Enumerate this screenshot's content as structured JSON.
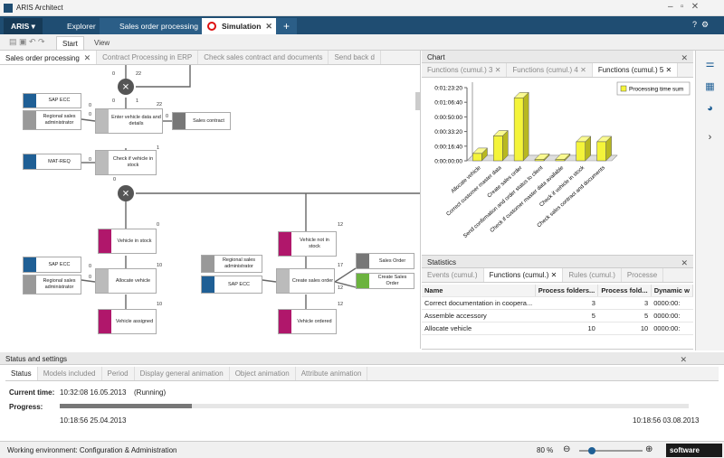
{
  "window": {
    "title": "ARIS Architect"
  },
  "tabs": {
    "menu": "ARIS",
    "items": [
      "Explorer",
      "Sales order processing",
      "Simulation"
    ]
  },
  "ribbon": {
    "tabs": [
      "Start",
      "View"
    ]
  },
  "model_tabs": [
    "Sales order processing",
    "Contract Processing in ERP",
    "Check sales contract and documents",
    "Send back d"
  ],
  "diagram": {
    "nodes": [
      "SAP ECC",
      "Regional sales administrator",
      "Enter vehicle data and details",
      "Sales contract",
      "MAT-REQ",
      "Check if vehicle in stock",
      "Vehicle in stock",
      "Vehicle not in stock",
      "SAP ECC",
      "Regional sales administrator",
      "Allocate vehicle",
      "Regional sales administrator",
      "SAP ECC",
      "Create sales order",
      "Sales Order",
      "Create Sales Order",
      "Vehicle assigned",
      "Vehicle ordered"
    ],
    "counters": [
      0,
      22,
      0,
      1,
      0,
      0,
      22,
      0,
      0,
      1,
      0,
      0,
      0,
      12,
      0,
      10,
      17,
      12,
      10,
      12
    ]
  },
  "chart_panel": {
    "title": "Chart",
    "tabs": [
      "Functions (cumul.) 3",
      "Functions (cumul.) 4",
      "Functions (cumul.) 5"
    ],
    "chart": {
      "type": "bar",
      "categories": [
        "Allocate vehicle",
        "Correct customer master data",
        "Create sales order",
        "Send confirmation and order status to client",
        "Check if customer master data available",
        "Check if vehicle in stock",
        "Check sales contract and documents"
      ],
      "series": [
        {
          "name": "Processing time sum",
          "color": "#f4f43a",
          "values": [
            500,
            1700,
            4300,
            100,
            100,
            1300,
            1300
          ]
        }
      ],
      "ylim": [
        0,
        5000
      ],
      "yticks": [
        {
          "value": 0,
          "label": "0:00:00:00"
        },
        {
          "value": 1000,
          "label": "0:00:16:40"
        },
        {
          "value": 2000,
          "label": "0:00:33:20"
        },
        {
          "value": 3000,
          "label": "0:00:50:00"
        },
        {
          "value": 4000,
          "label": "0:01:06:40"
        },
        {
          "value": 5000,
          "label": "0:01:23:20"
        }
      ]
    }
  },
  "statistics": {
    "title": "Statistics",
    "tabs": [
      "Events (cumul.)",
      "Functions (cumul.)",
      "Rules (cumul.)",
      "Processe"
    ],
    "table": {
      "header": [
        "Name",
        "Process folders...",
        "Process fold...",
        "Dynamic w"
      ],
      "rows": [
        [
          "Correct documentation in coopera...",
          3,
          3,
          "0000:00:"
        ],
        [
          "Assemble accessory",
          5,
          5,
          "0000:00:"
        ],
        [
          "Allocate vehicle",
          10,
          10,
          "0000:00:"
        ]
      ]
    }
  },
  "status": {
    "title": "Status and settings",
    "tabs": [
      "Status",
      "Models included",
      "Period",
      "Display general animation",
      "Object animation",
      "Attribute animation"
    ],
    "current_time_label": "Current time:",
    "current_time": "10:32:08 16.05.2013",
    "state": "(Running)",
    "progress_label": "Progress:",
    "start": "10:18:56 25.04.2013",
    "end": "10:18:56 03.08.2013"
  },
  "statusbar": {
    "environment": "Working environment: Configuration & Administration",
    "zoom": "80 %",
    "brand": "software"
  }
}
